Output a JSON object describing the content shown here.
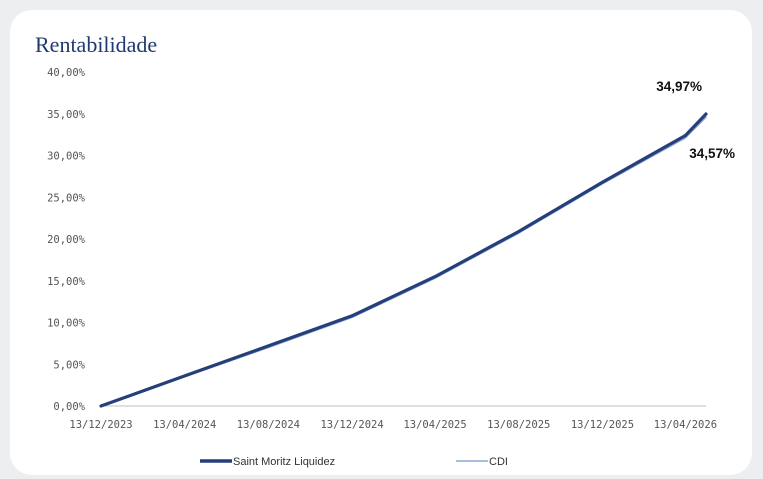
{
  "card": {
    "title": "Rentabilidade"
  },
  "chart_data": {
    "type": "line",
    "title": "Rentabilidade",
    "xlabel": "",
    "ylabel": "",
    "ylim": [
      0,
      40
    ],
    "y_ticks": [
      "0,00%",
      "5,00%",
      "10,00%",
      "15,00%",
      "20,00%",
      "25,00%",
      "30,00%",
      "35,00%",
      "40,00%"
    ],
    "x_ticks": [
      "13/12/2023",
      "13/04/2024",
      "13/08/2024",
      "13/12/2024",
      "13/04/2025",
      "13/08/2025",
      "13/12/2025",
      "13/04/2026"
    ],
    "x_range": [
      "13/12/2023",
      "13/05/2026"
    ],
    "grid": false,
    "legend_position": "bottom",
    "x": [
      "13/12/2023",
      "13/04/2024",
      "13/08/2024",
      "13/12/2024",
      "13/04/2025",
      "13/08/2025",
      "13/12/2025",
      "13/04/2026",
      "13/05/2026"
    ],
    "series": [
      {
        "name": "Saint Moritz Liquidez",
        "color": "#253f7a",
        "values": [
          0,
          3.6,
          7.2,
          10.8,
          15.5,
          20.9,
          26.8,
          32.4,
          34.97
        ],
        "end_label": "34,97%"
      },
      {
        "name": "CDI",
        "color": "#8fa7d4",
        "values": [
          0,
          3.5,
          7.0,
          10.6,
          15.3,
          20.7,
          26.6,
          32.1,
          34.57
        ],
        "end_label": "34,57%"
      }
    ]
  }
}
